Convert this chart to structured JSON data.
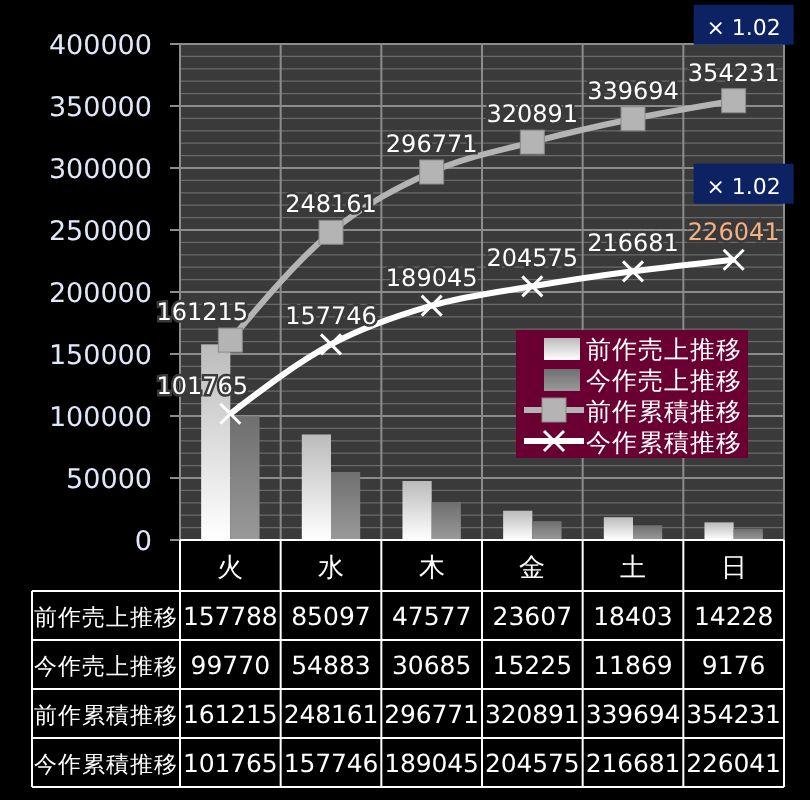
{
  "chart_data": {
    "type": "bar",
    "categories": [
      "火",
      "水",
      "木",
      "金",
      "土",
      "日"
    ],
    "series": [
      {
        "name": "前作売上推移",
        "color": "#e8e8e8",
        "values": [
          157788,
          85097,
          47577,
          23607,
          18403,
          14228
        ]
      },
      {
        "name": "今作売上推移",
        "color": "#8a8a8a",
        "values": [
          99770,
          54883,
          30685,
          15225,
          11869,
          9176
        ]
      },
      {
        "name": "前作累積推移",
        "type": "line",
        "color": "#b4b4b4",
        "marker": "square",
        "values": [
          161215,
          248161,
          296771,
          320891,
          339694,
          354231
        ],
        "value_labels": [
          "161215",
          "248161",
          "296771",
          "320891",
          "339694",
          "354231"
        ]
      },
      {
        "name": "今作累積推移",
        "type": "line",
        "color": "#ffffff",
        "marker": "cross",
        "values": [
          101765,
          157746,
          189045,
          204575,
          216681,
          226041
        ],
        "value_labels": [
          "101765",
          "157746",
          "189045",
          "204575",
          "216681",
          "226041"
        ]
      }
    ],
    "ylim": [
      0,
      400000
    ],
    "yticks": [
      0,
      50000,
      100000,
      150000,
      200000,
      250000,
      300000,
      350000,
      400000
    ],
    "grid": true,
    "legend": "right",
    "data_labels": true,
    "annotations": [
      "× 1.02",
      "× 1.02"
    ]
  }
}
